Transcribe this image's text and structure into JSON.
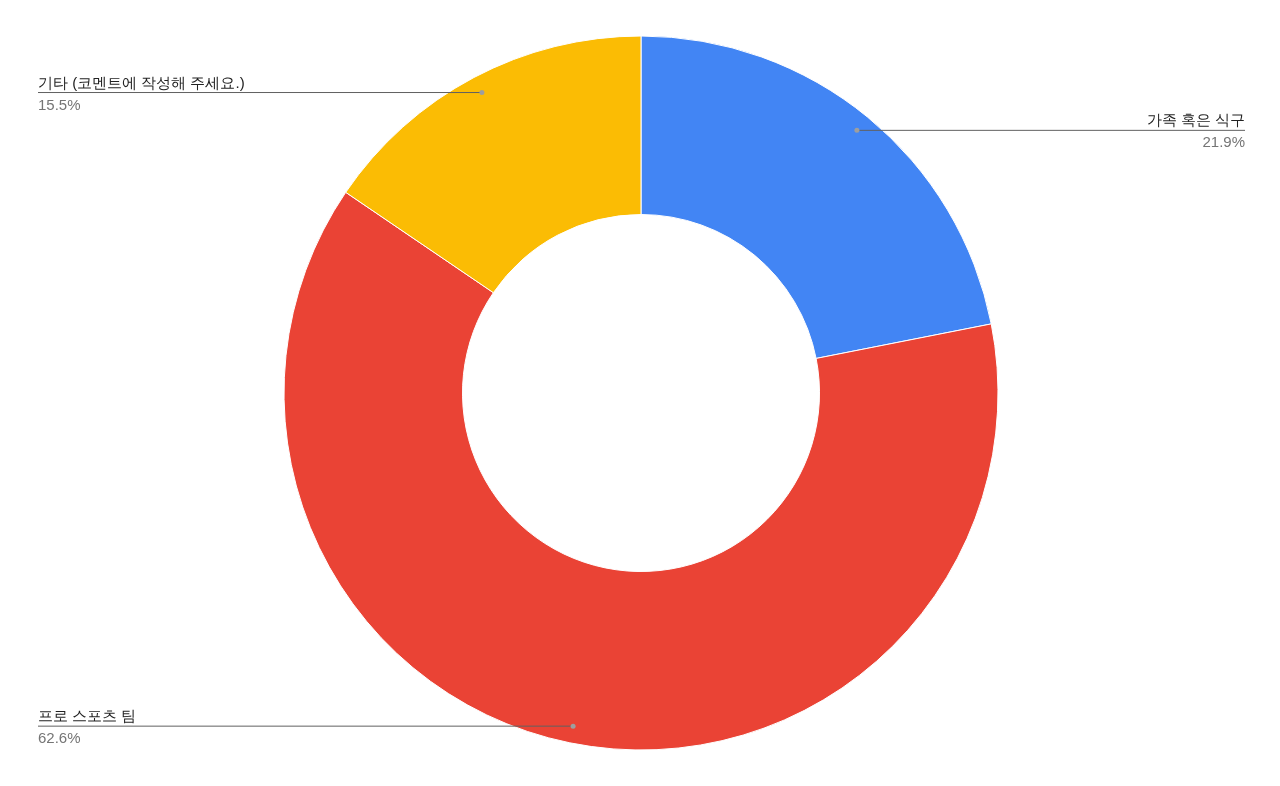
{
  "chart_data": {
    "type": "donut",
    "categories": [
      "가족 혹은 식구",
      "프로 스포츠 팀",
      "기타 (코멘트에 작성해 주세요.)"
    ],
    "values": [
      21.9,
      62.6,
      15.5
    ],
    "colors": [
      "#4285f4",
      "#ea4335",
      "#fbbc04"
    ],
    "value_labels": [
      "21.9%",
      "62.6%",
      "15.5%"
    ]
  }
}
